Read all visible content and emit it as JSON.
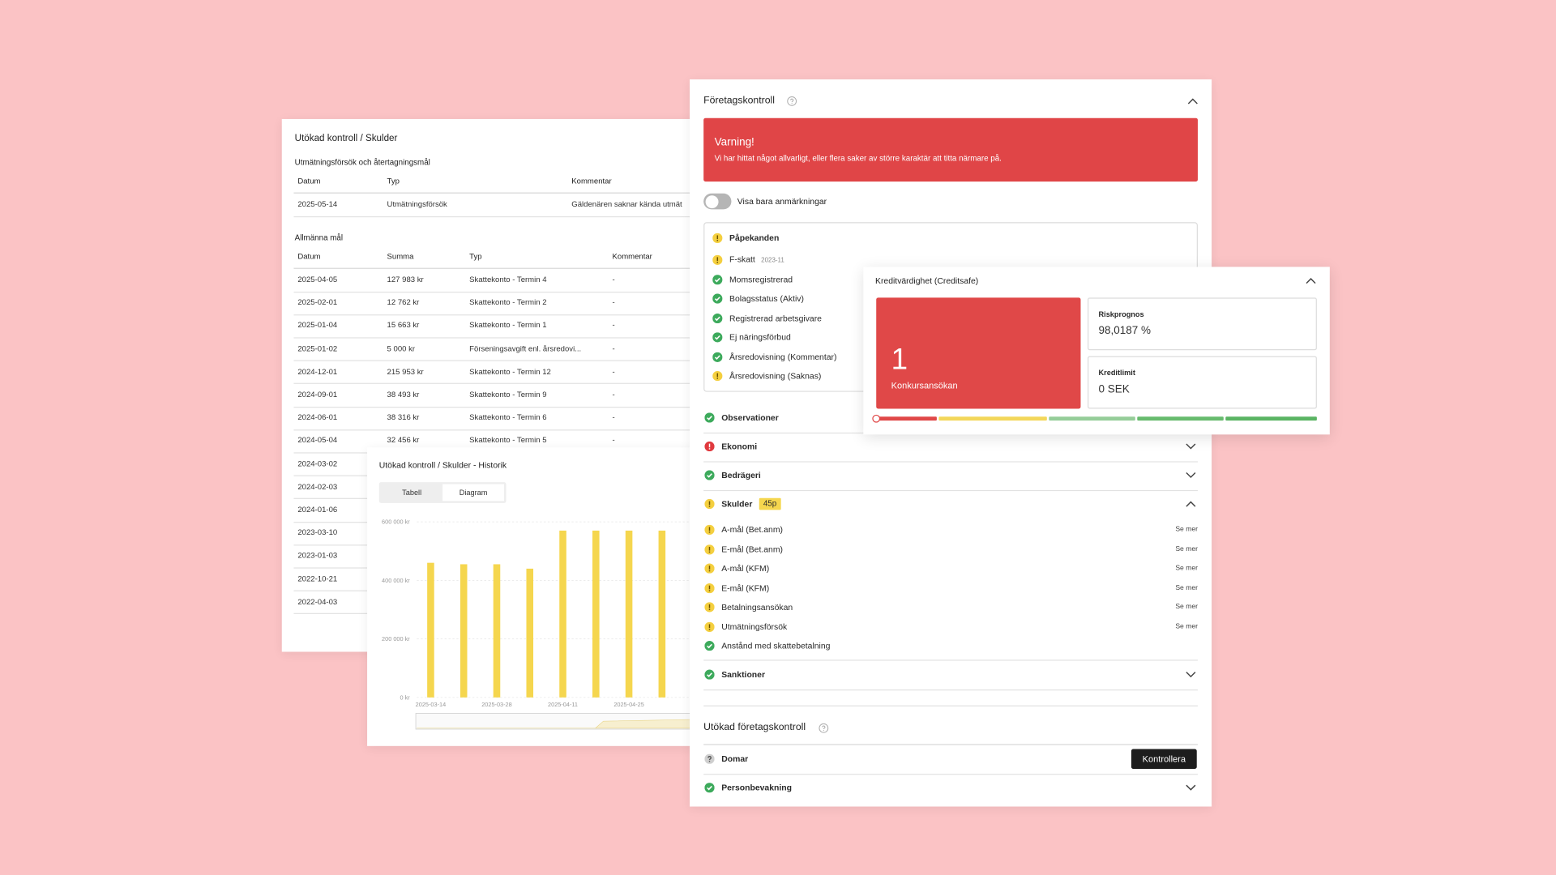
{
  "debts_card": {
    "title": "Utökad kontroll / Skulder",
    "enforcement": {
      "title": "Utmätningsförsök och återtagningsmål",
      "headers": [
        "Datum",
        "Typ",
        "Kommentar"
      ],
      "rows": [
        [
          "2025-05-14",
          "Utmätningsförsök",
          "Gäldenären saknar kända utmät"
        ]
      ]
    },
    "general": {
      "title": "Allmänna mål",
      "headers": [
        "Datum",
        "Summa",
        "Typ",
        "Kommentar"
      ],
      "rows": [
        [
          "2025-04-05",
          "127 983 kr",
          "Skattekonto - Termin 4",
          "-"
        ],
        [
          "2025-02-01",
          "12 762 kr",
          "Skattekonto - Termin 2",
          "-"
        ],
        [
          "2025-01-04",
          "15 663 kr",
          "Skattekonto - Termin 1",
          "-"
        ],
        [
          "2025-01-02",
          "5 000 kr",
          "Förseningsavgift enl. årsredovi...",
          "-"
        ],
        [
          "2024-12-01",
          "215 953 kr",
          "Skattekonto - Termin 12",
          "-"
        ],
        [
          "2024-09-01",
          "38 493 kr",
          "Skattekonto - Termin 9",
          "-"
        ],
        [
          "2024-06-01",
          "38 316 kr",
          "Skattekonto - Termin 6",
          "-"
        ],
        [
          "2024-05-04",
          "32 456 kr",
          "Skattekonto - Termin 5",
          "-"
        ],
        [
          "2024-03-02"
        ],
        [
          "2024-02-03"
        ],
        [
          "2024-01-06"
        ],
        [
          "2023-03-10"
        ],
        [
          "2023-01-03"
        ],
        [
          "2022-10-21"
        ],
        [
          "2022-04-03"
        ]
      ]
    }
  },
  "history_card": {
    "title": "Utökad kontroll / Skulder - Historik",
    "tabs": [
      "Tabell",
      "Diagram"
    ],
    "active_tab": 1,
    "chart": {
      "type": "bar",
      "categories": [
        "2025-03-14",
        null,
        "2025-03-28",
        null,
        "2025-04-11",
        null,
        "2025-04-25",
        null,
        "202"
      ],
      "values": [
        460000,
        455000,
        455000,
        440000,
        570000,
        570000,
        570000,
        570000,
        null
      ],
      "color": "#f5d64e",
      "ylim": [
        0,
        600000
      ],
      "yticks": [
        {
          "value": 0,
          "label": "0 kr"
        },
        {
          "value": 200000,
          "label": "200 000 kr"
        },
        {
          "value": 400000,
          "label": "400 000 kr"
        },
        {
          "value": 600000,
          "label": "600 000 kr"
        }
      ],
      "grid": true
    }
  },
  "company_card": {
    "title": "Företagskontroll",
    "warning": {
      "title": "Varning!",
      "text": "Vi har hittat något allvarligt, eller flera saker av större karaktär att titta närmare på."
    },
    "toggle_label": "Visa bara anmärkningar",
    "reminders": {
      "title": "Påpekanden",
      "status": "warning",
      "items": [
        {
          "label": "F-skatt",
          "tag": "2023-11",
          "status": "warning"
        },
        {
          "label": "Momsregistrerad",
          "status": "ok"
        },
        {
          "label": "Bolagsstatus (Aktiv)",
          "status": "ok"
        },
        {
          "label": "Registrerad arbetsgivare",
          "status": "ok"
        },
        {
          "label": "Ej näringsförbud",
          "status": "ok"
        },
        {
          "label": "Årsredovisning (Kommentar)",
          "status": "ok"
        },
        {
          "label": "Årsredovisning (Saknas)",
          "status": "warning"
        }
      ]
    },
    "sections": [
      {
        "label": "Observationer",
        "status": "ok"
      },
      {
        "label": "Ekonomi",
        "status": "error"
      },
      {
        "label": "Bedrägeri",
        "status": "ok"
      },
      {
        "label": "Skulder",
        "status": "warning",
        "badge": "45p",
        "expanded": true,
        "items": [
          {
            "label": "A-mål (Bet.anm)",
            "status": "warning",
            "link": "Se mer"
          },
          {
            "label": "E-mål (Bet.anm)",
            "status": "warning",
            "link": "Se mer"
          },
          {
            "label": "A-mål (KFM)",
            "status": "warning",
            "link": "Se mer"
          },
          {
            "label": "E-mål (KFM)",
            "status": "warning",
            "link": "Se mer"
          },
          {
            "label": "Betalningsansökan",
            "status": "warning",
            "link": "Se mer"
          },
          {
            "label": "Utmätningsförsök",
            "status": "warning",
            "link": "Se mer"
          },
          {
            "label": "Anstånd med skattebetalning",
            "status": "ok"
          }
        ]
      },
      {
        "label": "Sanktioner",
        "status": "ok"
      }
    ],
    "extended": {
      "title": "Utökad företagskontroll",
      "items": [
        {
          "label": "Domar",
          "status": "unknown",
          "button": "Kontrollera"
        },
        {
          "label": "Personbevakning",
          "status": "ok"
        }
      ]
    }
  },
  "credit_card": {
    "title": "Kreditvärdighet (Creditsafe)",
    "main": {
      "value": 1,
      "label": "Konkursansökan"
    },
    "boxes": [
      {
        "label": "Riskprognos",
        "value": "98,0187 %"
      },
      {
        "label": "Kreditlimit",
        "value": "0 SEK"
      }
    ]
  }
}
